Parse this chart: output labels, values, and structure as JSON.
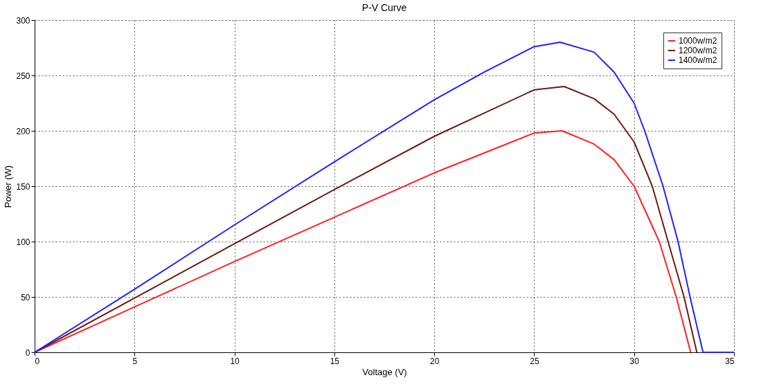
{
  "chart_data": {
    "type": "line",
    "title": "P-V Curve",
    "xlabel": "Voltage (V)",
    "ylabel": "Power (W)",
    "xlim": [
      0,
      35
    ],
    "xticks": [
      0,
      5,
      10,
      15,
      20,
      25,
      30,
      35
    ],
    "ylim": [
      0,
      300
    ],
    "yticks": [
      0,
      50,
      100,
      150,
      200,
      250,
      300
    ],
    "grid": true,
    "legend": "top right",
    "line_style": "solid",
    "marker": "none",
    "series": [
      {
        "name": "1000w/m2",
        "color": "#ff2020",
        "x": [
          0,
          5,
          10,
          15,
          20,
          22.5,
          25,
          26.4,
          28,
          29,
          30,
          31.26,
          32.11,
          32.83
        ],
        "values": [
          0,
          41,
          82,
          122,
          162,
          180,
          198,
          200,
          188,
          174,
          150,
          100,
          50,
          0
        ]
      },
      {
        "name": "1200w/m2",
        "color": "#6b1a10",
        "x": [
          0,
          5,
          10,
          15,
          20,
          22.5,
          25,
          26.5,
          28,
          29,
          30,
          30.91,
          31.7,
          32.5,
          33.14
        ],
        "values": [
          0,
          49,
          98,
          147,
          195,
          216,
          237,
          240,
          229,
          215,
          190,
          150,
          100,
          50,
          0
        ]
      },
      {
        "name": "1400w/m2",
        "color": "#2020ff",
        "x": [
          0,
          5,
          10,
          15,
          20,
          22.5,
          25,
          26.3,
          28,
          29,
          30,
          30.53,
          31.45,
          32.2,
          32.8,
          33.45,
          35
        ],
        "values": [
          0,
          57,
          115,
          172,
          228,
          253,
          276,
          280,
          271,
          253,
          225,
          200,
          150,
          100,
          50,
          0,
          0
        ]
      }
    ]
  }
}
